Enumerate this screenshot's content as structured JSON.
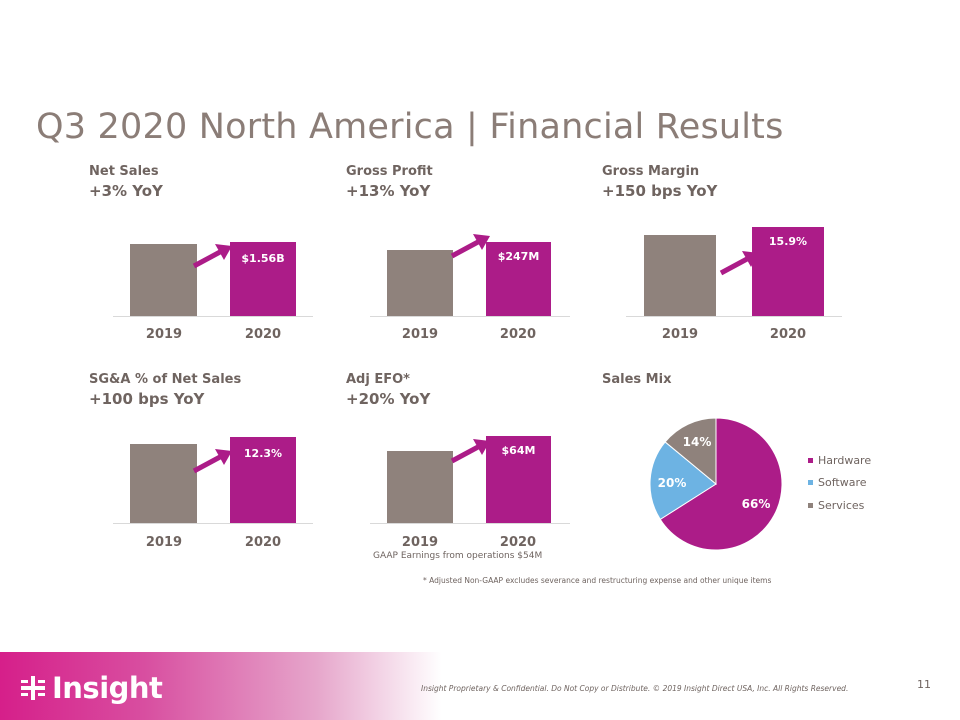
{
  "title": "Q3 2020 North America | Financial Results",
  "colors": {
    "prior": "#8f827c",
    "current": "#ac1c88",
    "hardware": "#ac1c88",
    "software": "#6db3e3",
    "services": "#8f827c"
  },
  "panels": [
    {
      "label": "Net Sales",
      "change": "+3% YoY",
      "value_label": "$1.56B",
      "years": [
        "2019",
        "2020"
      ]
    },
    {
      "label": "Gross Profit",
      "change": "+13% YoY",
      "value_label": "$247M",
      "years": [
        "2019",
        "2020"
      ]
    },
    {
      "label": "Gross Margin",
      "change": "+150 bps YoY",
      "value_label": "15.9%",
      "years": [
        "2019",
        "2020"
      ]
    },
    {
      "label": "SG&A  % of Net Sales",
      "change": "+100 bps YoY",
      "value_label": "12.3%",
      "years": [
        "2019",
        "2020"
      ]
    },
    {
      "label": "Adj EFO*",
      "change": "+20% YoY",
      "value_label": "$64M",
      "years": [
        "2019",
        "2020"
      ]
    }
  ],
  "sales_mix": {
    "label": "Sales Mix",
    "legend": [
      "Hardware",
      "Software",
      "Services"
    ],
    "labels": [
      "66%",
      "20%",
      "14%"
    ]
  },
  "chart_data": [
    {
      "type": "bar",
      "title": "Net Sales",
      "categories": [
        "2019",
        "2020"
      ],
      "values": [
        1.51,
        1.56
      ],
      "unit": "$B"
    },
    {
      "type": "bar",
      "title": "Gross Profit",
      "categories": [
        "2019",
        "2020"
      ],
      "values": [
        219,
        247
      ],
      "unit": "$M"
    },
    {
      "type": "bar",
      "title": "Gross Margin",
      "categories": [
        "2019",
        "2020"
      ],
      "values": [
        14.4,
        15.9
      ],
      "unit": "%"
    },
    {
      "type": "bar",
      "title": "SG&A  % of Net Sales",
      "categories": [
        "2019",
        "2020"
      ],
      "values": [
        11.3,
        12.3
      ],
      "unit": "%"
    },
    {
      "type": "bar",
      "title": "Adj EFO*",
      "categories": [
        "2019",
        "2020"
      ],
      "values": [
        53,
        64
      ],
      "unit": "$M"
    },
    {
      "type": "pie",
      "title": "Sales Mix",
      "categories": [
        "Hardware",
        "Software",
        "Services"
      ],
      "values": [
        66,
        20,
        14
      ]
    }
  ],
  "gaap_note": "GAAP Earnings from operations $54M",
  "adjusted_note": "* Adjusted Non-GAAP excludes severance and restructuring  expense and other unique items",
  "footer": {
    "logo_text": "Insight",
    "legal": "Insight Proprietary & Confidential. Do Not Copy or Distribute.  © 2019 Insight Direct USA, Inc.  All Rights Reserved.",
    "page_number": "11"
  }
}
